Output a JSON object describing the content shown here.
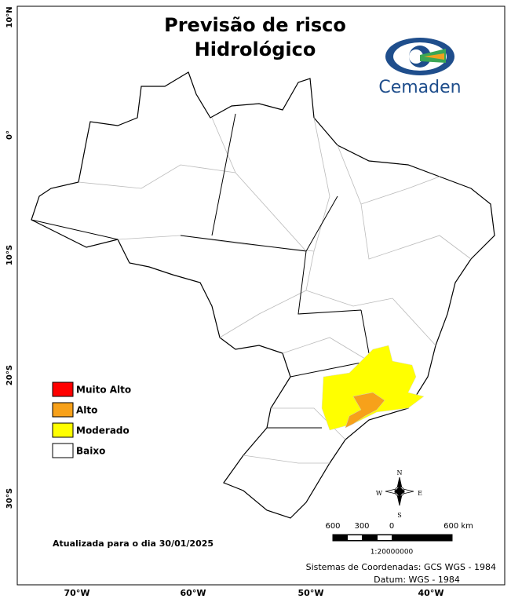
{
  "title": [
    "Previsão de risco",
    "Hidrológico"
  ],
  "logo_text": "Cemaden",
  "latitude_labels": [
    "10°N",
    "0°",
    "10°S",
    "20°S",
    "30°S"
  ],
  "longitude_labels": [
    "70°W",
    "60°W",
    "50°W",
    "40°W"
  ],
  "legend": [
    {
      "label": "Muito Alto",
      "color": "#ff0000"
    },
    {
      "label": "Alto",
      "color": "#f7a11a"
    },
    {
      "label": "Moderado",
      "color": "#ffff00"
    },
    {
      "label": "Baixo",
      "color": "#ffffff"
    }
  ],
  "compass": {
    "n": "N",
    "e": "E",
    "s": "S",
    "w": "W"
  },
  "scale_bar": {
    "labels": [
      "600",
      "300",
      "0",
      "600 km"
    ],
    "ratio": "1:20000000"
  },
  "updated": "Atualizada para o dia 30/01/2025",
  "footer": [
    "Sistemas de Coordenadas: GCS WGS - 1984",
    "Datum: WGS - 1984"
  ]
}
